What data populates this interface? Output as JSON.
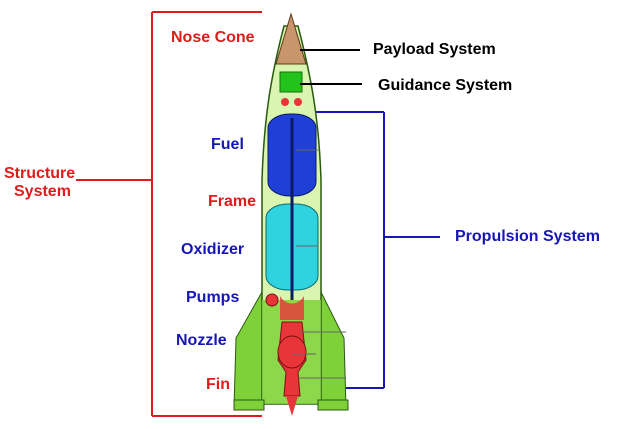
{
  "labels": {
    "nose_cone": "Nose Cone",
    "payload_system": "Payload  System",
    "guidance_system": "Guidance  System",
    "structure_system_line1": "Structure",
    "structure_system_line2": "System",
    "fuel": "Fuel",
    "frame": "Frame",
    "oxidizer": "Oxidizer",
    "pumps": "Pumps",
    "nozzle": "Nozzle",
    "fin": "Fin",
    "propulsion_system": "Propulsion  System"
  },
  "colors": {
    "structure_red": "#e01b1b",
    "propulsion_blue": "#1616b8",
    "hull_green": "#d9f5b0",
    "fin_green": "#7fd13a",
    "fuel_tank": "#1f3fd6",
    "oxidizer_tank": "#2fd3e0",
    "guidance": "#22c41c",
    "payload": "#c9956a",
    "engine_red": "#e8353a"
  }
}
